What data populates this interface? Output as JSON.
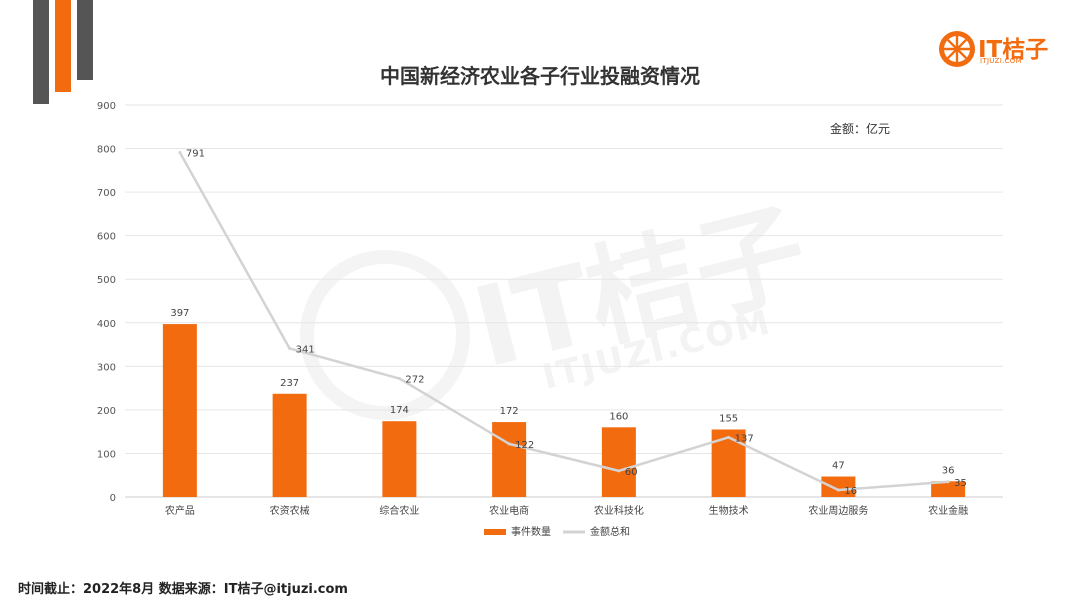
{
  "title": "中国新经济农业各子行业投融资情况",
  "unit_label": "金额：亿元",
  "logo": {
    "text": "IT桔子",
    "sub": "ITJUZI.COM"
  },
  "watermark": {
    "text": "IT桔子",
    "sub": "ITJUZI.COM"
  },
  "footer": "时间截止：2022年8月  数据来源：IT桔子@itjuzi.com",
  "colors": {
    "accent": "#f26b0f",
    "dark": "#555555",
    "line": "#d3d3d3",
    "grid": "#e6e6e6"
  },
  "chart_data": {
    "type": "bar",
    "title": "中国新经济农业各子行业投融资情况",
    "categories": [
      "农产品",
      "农资农械",
      "综合农业",
      "农业电商",
      "农业科技化",
      "生物技术",
      "农业周边服务",
      "农业金融"
    ],
    "series": [
      {
        "name": "事件数量",
        "type": "bar",
        "color": "#f26b0f",
        "values": [
          397,
          237,
          174,
          172,
          160,
          155,
          47,
          36
        ]
      },
      {
        "name": "金额总和",
        "type": "line",
        "color": "#d3d3d3",
        "values": [
          791,
          341,
          272,
          122,
          60,
          137,
          16,
          35
        ]
      }
    ],
    "yticks": [
      "0",
      "100",
      "200",
      "300",
      "400",
      "500",
      "600",
      "700",
      "800",
      "900"
    ],
    "ylim": [
      0,
      900
    ],
    "grid": true,
    "legend": "bottom"
  }
}
